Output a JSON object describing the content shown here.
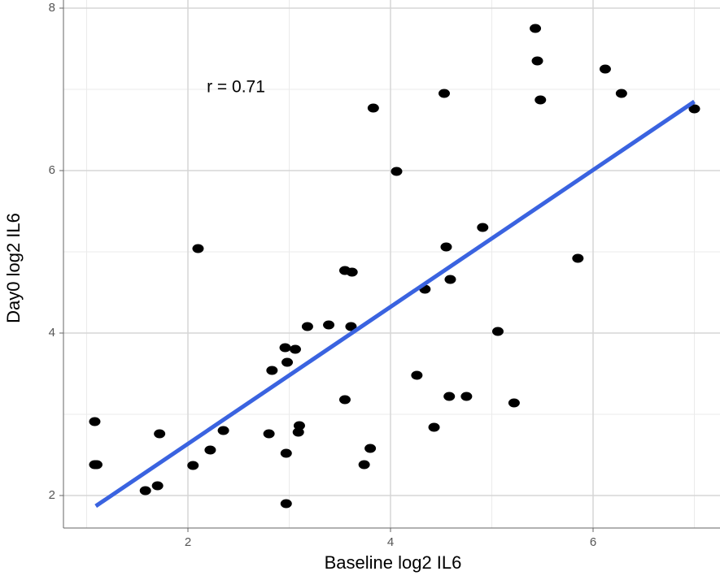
{
  "chart_data": {
    "type": "scatter",
    "annotation": "r = 0.71",
    "x_label": "Baseline log2 IL6",
    "y_label": "Day0 log2 IL6",
    "x": [
      1.08,
      1.08,
      1.1,
      1.58,
      1.7,
      1.72,
      2.05,
      2.1,
      2.22,
      2.35,
      2.8,
      2.83,
      2.96,
      2.98,
      2.97,
      2.97,
      3.06,
      3.1,
      3.09,
      3.18,
      3.39,
      3.55,
      3.55,
      3.62,
      3.61,
      3.74,
      3.8,
      3.83,
      4.06,
      4.26,
      4.34,
      4.43,
      4.53,
      4.55,
      4.58,
      4.59,
      4.75,
      4.91,
      5.06,
      5.22,
      5.43,
      5.45,
      5.48,
      5.85,
      6.12,
      6.28,
      7.0
    ],
    "values": [
      2.91,
      2.38,
      2.38,
      2.06,
      2.12,
      2.76,
      2.37,
      5.04,
      2.56,
      2.8,
      2.76,
      3.54,
      3.82,
      3.64,
      2.52,
      1.9,
      3.8,
      2.86,
      2.78,
      4.08,
      4.1,
      3.18,
      4.77,
      4.75,
      4.08,
      2.38,
      2.58,
      6.77,
      5.99,
      3.48,
      4.54,
      2.84,
      6.95,
      5.06,
      3.22,
      4.66,
      3.22,
      5.3,
      4.02,
      3.14,
      7.75,
      7.35,
      6.87,
      4.92,
      7.25,
      6.95,
      6.76
    ],
    "color": "#000000",
    "fit_line": {
      "x": [
        1.09,
        7.0
      ],
      "y": [
        1.87,
        6.85
      ],
      "color": "#3a63e0"
    },
    "xlim": [
      0.771,
      7.253
    ],
    "ylim": [
      1.6,
      8.1
    ],
    "xticks": [
      2,
      4,
      6
    ],
    "yticks": [
      2,
      4,
      6,
      8
    ],
    "grid": true
  }
}
